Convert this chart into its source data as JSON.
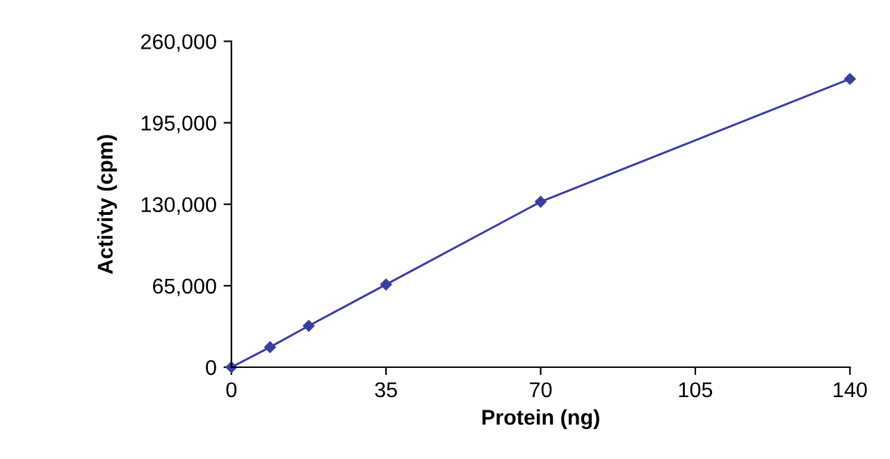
{
  "chart_data": {
    "type": "line",
    "xlabel": "Protein (ng)",
    "ylabel": "Activity (cpm)",
    "x": [
      0,
      8.75,
      17.5,
      35,
      70,
      140
    ],
    "series": [
      {
        "color": "#3a3f9e",
        "values": [
          0,
          16000,
          33000,
          66000,
          132000,
          230000
        ]
      }
    ],
    "xlim": [
      0,
      140
    ],
    "xticks": [
      0,
      35,
      70,
      105,
      140
    ],
    "ylim": [
      0,
      260000
    ],
    "yticks": [
      {
        "value": 0,
        "label": "0"
      },
      {
        "value": 65000,
        "label": "65,000"
      },
      {
        "value": 130000,
        "label": "130,000"
      },
      {
        "value": 195000,
        "label": "195,000"
      },
      {
        "value": 260000,
        "label": "260,000"
      }
    ],
    "marker": "diamond",
    "line_style": "solid",
    "grid": false,
    "legend": false
  }
}
